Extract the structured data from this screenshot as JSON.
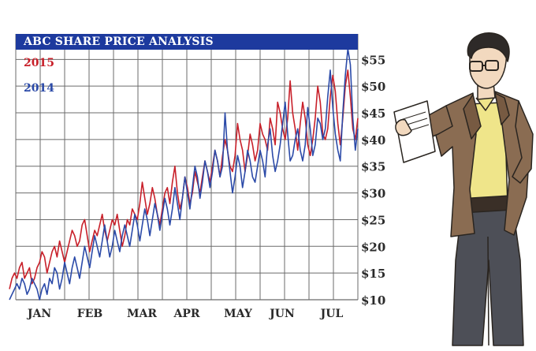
{
  "colors": {
    "title_bg": "#1d3a9e",
    "title_text": "#ffffff",
    "series_2015": "#c8202a",
    "series_2014": "#2b4aa8",
    "grid": "#6b6b6b",
    "axis_text": "#2a2a2a"
  },
  "chart_data": {
    "type": "line",
    "title": "ABC SHARE PRICE ANALYSIS",
    "xlabel": "",
    "ylabel": "",
    "x_tick_labels": [
      "JAN",
      "FEB",
      "MAR",
      "APR",
      "MAY",
      "JUN",
      "JUL"
    ],
    "y_ticks": [
      10,
      15,
      20,
      25,
      30,
      35,
      40,
      45,
      50,
      55
    ],
    "y_tick_labels": [
      "$10",
      "$15",
      "$20",
      "$25",
      "$30",
      "$35",
      "$40",
      "$45",
      "$50",
      "$55"
    ],
    "ylim": [
      10,
      58
    ],
    "grid": true,
    "legend_placement": "top-left",
    "series": [
      {
        "name": "2015",
        "color": "#c8202a",
        "values": [
          12,
          14,
          15,
          14,
          16,
          17,
          14,
          15,
          16,
          13,
          14,
          16,
          17,
          19,
          18,
          15,
          17,
          19,
          20,
          18,
          21,
          19,
          17,
          19,
          21,
          23,
          22,
          20,
          21,
          24,
          25,
          22,
          19,
          21,
          23,
          22,
          24,
          26,
          23,
          21,
          23,
          25,
          24,
          26,
          23,
          20,
          22,
          25,
          24,
          27,
          26,
          25,
          28,
          32,
          29,
          26,
          28,
          31,
          29,
          26,
          24,
          27,
          30,
          31,
          28,
          32,
          35,
          30,
          27,
          29,
          33,
          31,
          28,
          30,
          34,
          32,
          30,
          33,
          36,
          34,
          32,
          35,
          38,
          36,
          33,
          37,
          40,
          38,
          35,
          34,
          37,
          43,
          40,
          38,
          34,
          37,
          41,
          39,
          36,
          38,
          43,
          41,
          40,
          38,
          44,
          42,
          39,
          47,
          45,
          42,
          40,
          44,
          51,
          45,
          42,
          38,
          43,
          47,
          44,
          39,
          37,
          40,
          44,
          50,
          47,
          41,
          40,
          42,
          48,
          52,
          49,
          43,
          39,
          44,
          50,
          53,
          48,
          42,
          40,
          44
        ]
      },
      {
        "name": "2014",
        "color": "#2b4aa8",
        "values": [
          10,
          11,
          12,
          13,
          12,
          14,
          13,
          11,
          12,
          14,
          13,
          12,
          10,
          12,
          13,
          11,
          14,
          13,
          16,
          15,
          12,
          14,
          17,
          15,
          13,
          16,
          18,
          16,
          14,
          17,
          20,
          18,
          16,
          19,
          22,
          20,
          18,
          21,
          24,
          21,
          18,
          20,
          23,
          21,
          19,
          22,
          24,
          22,
          20,
          23,
          26,
          24,
          21,
          24,
          27,
          25,
          22,
          25,
          28,
          26,
          23,
          26,
          29,
          27,
          24,
          27,
          31,
          28,
          25,
          29,
          33,
          30,
          27,
          31,
          35,
          33,
          29,
          32,
          36,
          34,
          31,
          34,
          38,
          36,
          33,
          35,
          45,
          38,
          34,
          30,
          33,
          37,
          35,
          31,
          34,
          38,
          36,
          33,
          32,
          35,
          38,
          36,
          33,
          39,
          42,
          37,
          34,
          36,
          39,
          43,
          47,
          41,
          36,
          37,
          40,
          42,
          38,
          36,
          39,
          46,
          42,
          37,
          39,
          44,
          43,
          40,
          42,
          48,
          53,
          46,
          41,
          38,
          36,
          45,
          52,
          57,
          54,
          44,
          38,
          42
        ]
      }
    ]
  }
}
